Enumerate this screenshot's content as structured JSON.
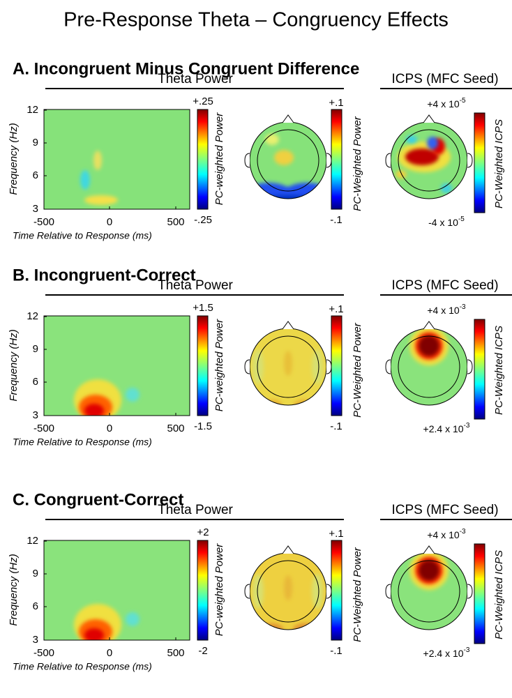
{
  "title": "Pre-Response Theta – Congruency Effects",
  "panels": [
    {
      "heading": "A. Incongruent Minus Congruent Difference",
      "theta_header": "Theta Power",
      "icps_header": "ICPS (MFC Seed)",
      "tf": {
        "ylabel": "Frequency (Hz)",
        "xlabel": "Time Relative to Response (ms)",
        "xticks": [
          "-500",
          "0",
          "500"
        ],
        "yticks": [
          "3",
          "6",
          "9",
          "12"
        ]
      },
      "tf_colorbar": {
        "max": "+.25",
        "min": "-.25",
        "label": "PC-weighted Power"
      },
      "topo_colorbar": {
        "max": "+.1",
        "min": "-.1",
        "label": "PC-Weighted Power"
      },
      "icps_colorbar": {
        "max": {
          "base": "+4 x 10",
          "exp": "-5"
        },
        "min": {
          "base": "-4 x 10",
          "exp": "-5"
        },
        "label": "PC-Weighted ICPS"
      }
    },
    {
      "heading": "B. Incongruent-Correct",
      "theta_header": "Theta Power",
      "icps_header": "ICPS (MFC Seed)",
      "tf": {
        "ylabel": "Frequency (Hz)",
        "xlabel": "Time Relative to Response (ms)",
        "xticks": [
          "-500",
          "0",
          "500"
        ],
        "yticks": [
          "3",
          "6",
          "9",
          "12"
        ]
      },
      "tf_colorbar": {
        "max": "+1.5",
        "min": "-1.5",
        "label": "PC-weighted Power"
      },
      "topo_colorbar": {
        "max": "+.1",
        "min": "-.1",
        "label": "PC-Weighted Power"
      },
      "icps_colorbar": {
        "max": {
          "base": "+4 x 10",
          "exp": "-3"
        },
        "min": {
          "base": "+2.4 x 10",
          "exp": "-3"
        },
        "label": "PC-Weighted ICPS"
      }
    },
    {
      "heading": "C. Congruent-Correct",
      "theta_header": "Theta Power",
      "icps_header": "ICPS (MFC Seed)",
      "tf": {
        "ylabel": "Frequency (Hz)",
        "xlabel": "Time Relative to Response (ms)",
        "xticks": [
          "-500",
          "0",
          "500"
        ],
        "yticks": [
          "3",
          "6",
          "9",
          "12"
        ]
      },
      "tf_colorbar": {
        "max": "+2",
        "min": "-2",
        "label": "PC-weighted Power"
      },
      "topo_colorbar": {
        "max": "+.1",
        "min": "-.1",
        "label": "PC-Weighted Power"
      },
      "icps_colorbar": {
        "max": {
          "base": "+4 x 10",
          "exp": "-3"
        },
        "min": {
          "base": "+2.4 x 10",
          "exp": "-3"
        },
        "label": "PC-Weighted ICPS"
      }
    }
  ]
}
